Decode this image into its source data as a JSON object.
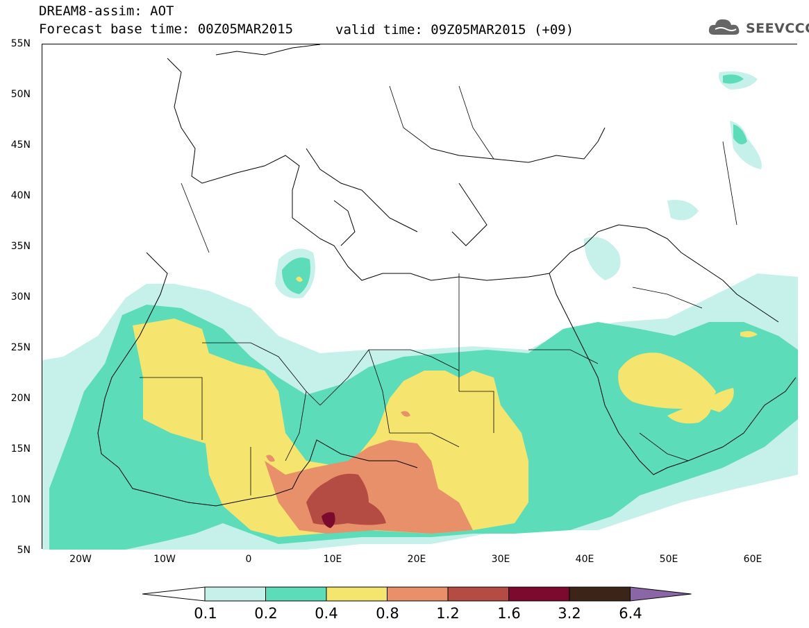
{
  "header": {
    "title": "DREAM8-assim: AOT",
    "base_time": "Forecast base time: 00Z05MAR2015",
    "valid_time": "valid time: 09Z05MAR2015 (+09)",
    "logo_text": "SEEVCCC"
  },
  "axes": {
    "lat_labels": [
      "55N",
      "50N",
      "45N",
      "40N",
      "35N",
      "30N",
      "25N",
      "20N",
      "15N",
      "10N",
      "5N"
    ],
    "lon_labels": [
      "20W",
      "10W",
      "0",
      "10E",
      "20E",
      "30E",
      "40E",
      "50E",
      "60E"
    ]
  },
  "colorbar": {
    "labels": [
      "0.1",
      "0.2",
      "0.4",
      "0.8",
      "1.2",
      "1.6",
      "3.2",
      "6.4"
    ],
    "colors": [
      "#c6f0ea",
      "#5cdcb8",
      "#f5e56f",
      "#e8906a",
      "#b44c44",
      "#7c0a2e",
      "#3c2418",
      "#8a66a6"
    ]
  },
  "map": {
    "field": "AOT",
    "region": "North Africa, Europe and Middle East",
    "lat_range": [
      5,
      55
    ],
    "lon_range": [
      -25,
      65
    ]
  }
}
